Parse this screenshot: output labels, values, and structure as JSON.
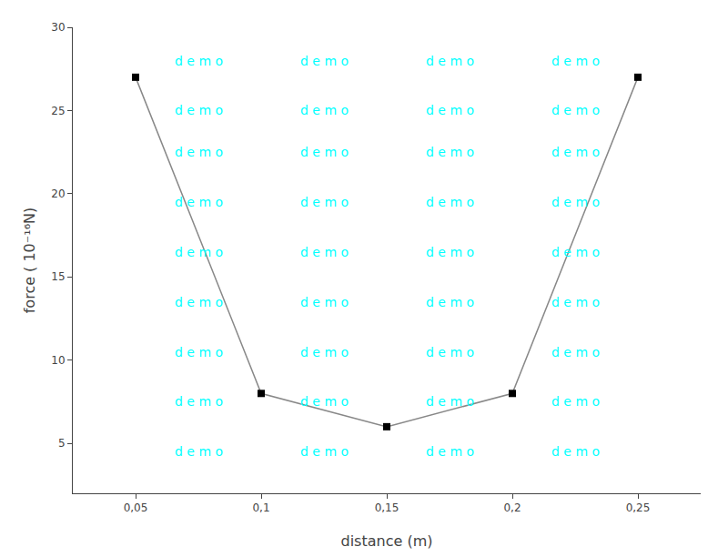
{
  "chart_data": {
    "type": "line",
    "xlabel": "distance (m)",
    "ylabel": "force ( 10⁻¹⁶N)",
    "x": [
      0.05,
      0.1,
      0.15,
      0.2,
      0.25
    ],
    "values": [
      27.0,
      8.0,
      6.0,
      8.0,
      27.0
    ],
    "color": "#888888",
    "colors": [
      "black",
      "black",
      "black",
      "black",
      "black"
    ],
    "marker": "square",
    "xlim": [
      0.025,
      0.275
    ],
    "ylim": [
      2,
      30
    ],
    "xticks": [
      {
        "value": 0.05,
        "label": "0,05"
      },
      {
        "value": 0.1,
        "label": "0,1"
      },
      {
        "value": 0.15,
        "label": "0,15"
      },
      {
        "value": 0.2,
        "label": "0,2"
      },
      {
        "value": 0.25,
        "label": "0,25"
      }
    ],
    "yticks": [
      5,
      10,
      15,
      20,
      25,
      30
    ],
    "grid": false,
    "annotations": [
      {
        "text": "d e m o",
        "x": 0.075,
        "y": 28.0,
        "color": "#00FFFF"
      },
      {
        "text": "d e m o",
        "x": 0.125,
        "y": 28.0,
        "color": "#00FFFF"
      },
      {
        "text": "d e m o",
        "x": 0.175,
        "y": 28.0,
        "color": "#00FFFF"
      },
      {
        "text": "d e m o",
        "x": 0.225,
        "y": 28.0,
        "color": "#00FFFF"
      },
      {
        "text": "d e m o",
        "x": 0.075,
        "y": 25.0,
        "color": "#00FFFF"
      },
      {
        "text": "d e m o",
        "x": 0.125,
        "y": 25.0,
        "color": "#00FFFF"
      },
      {
        "text": "d e m o",
        "x": 0.175,
        "y": 25.0,
        "color": "#00FFFF"
      },
      {
        "text": "d e m o",
        "x": 0.225,
        "y": 25.0,
        "color": "#00FFFF"
      },
      {
        "text": "d e m o",
        "x": 0.075,
        "y": 22.5,
        "color": "#00FFFF"
      },
      {
        "text": "d e m o",
        "x": 0.125,
        "y": 22.5,
        "color": "#00FFFF"
      },
      {
        "text": "d e m o",
        "x": 0.175,
        "y": 22.5,
        "color": "#00FFFF"
      },
      {
        "text": "d e m o",
        "x": 0.225,
        "y": 22.5,
        "color": "#00FFFF"
      },
      {
        "text": "d e m o",
        "x": 0.075,
        "y": 19.5,
        "color": "#00FFFF"
      },
      {
        "text": "d e m o",
        "x": 0.125,
        "y": 19.5,
        "color": "#00FFFF"
      },
      {
        "text": "d e m o",
        "x": 0.175,
        "y": 19.5,
        "color": "#00FFFF"
      },
      {
        "text": "d e m o",
        "x": 0.225,
        "y": 19.5,
        "color": "#00FFFF"
      },
      {
        "text": "d e m o",
        "x": 0.075,
        "y": 16.5,
        "color": "#00FFFF"
      },
      {
        "text": "d e m o",
        "x": 0.125,
        "y": 16.5,
        "color": "#00FFFF"
      },
      {
        "text": "d e m o",
        "x": 0.175,
        "y": 16.5,
        "color": "#00FFFF"
      },
      {
        "text": "d e m o",
        "x": 0.225,
        "y": 16.5,
        "color": "#00FFFF"
      },
      {
        "text": "d e m o",
        "x": 0.075,
        "y": 13.5,
        "color": "#00FFFF"
      },
      {
        "text": "d e m o",
        "x": 0.125,
        "y": 13.5,
        "color": "#00FFFF"
      },
      {
        "text": "d e m o",
        "x": 0.175,
        "y": 13.5,
        "color": "#00FFFF"
      },
      {
        "text": "d e m o",
        "x": 0.225,
        "y": 13.5,
        "color": "#00FFFF"
      },
      {
        "text": "d e m o",
        "x": 0.075,
        "y": 10.5,
        "color": "#00FFFF"
      },
      {
        "text": "d e m o",
        "x": 0.125,
        "y": 10.5,
        "color": "#00FFFF"
      },
      {
        "text": "d e m o",
        "x": 0.175,
        "y": 10.5,
        "color": "#00FFFF"
      },
      {
        "text": "d e m o",
        "x": 0.225,
        "y": 10.5,
        "color": "#00FFFF"
      },
      {
        "text": "d e m o",
        "x": 0.075,
        "y": 7.5,
        "color": "#00FFFF"
      },
      {
        "text": "d e m o",
        "x": 0.125,
        "y": 7.5,
        "color": "#00FFFF"
      },
      {
        "text": "d e m o",
        "x": 0.175,
        "y": 7.5,
        "color": "#00FFFF"
      },
      {
        "text": "d e m o",
        "x": 0.225,
        "y": 7.5,
        "color": "#00FFFF"
      },
      {
        "text": "d e m o",
        "x": 0.075,
        "y": 4.5,
        "color": "#00FFFF"
      },
      {
        "text": "d e m o",
        "x": 0.125,
        "y": 4.5,
        "color": "#00FFFF"
      },
      {
        "text": "d e m o",
        "x": 0.175,
        "y": 4.5,
        "color": "#00FFFF"
      },
      {
        "text": "d e m o",
        "x": 0.225,
        "y": 4.5,
        "color": "#00FFFF"
      }
    ]
  }
}
